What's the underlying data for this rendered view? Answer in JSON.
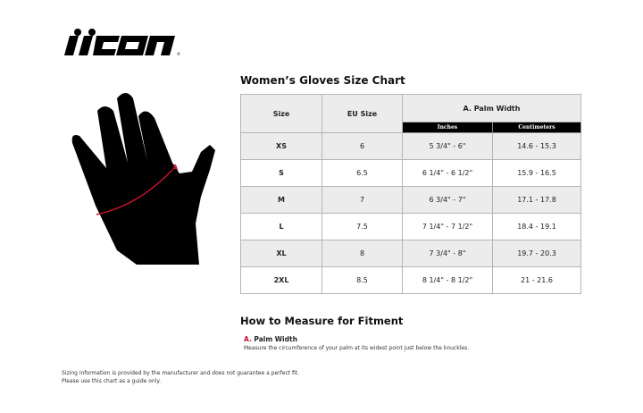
{
  "brand": "icon",
  "title": "Women’s Gloves Size Chart",
  "table": {
    "headers": {
      "size": "Size",
      "eu": "EU Size",
      "palm": "A. Palm Width",
      "inches": "Inches",
      "cm": "Centimeters"
    },
    "rows": [
      {
        "size": "XS",
        "eu": "6",
        "inches": "5 3/4\" - 6\"",
        "cm": "14.6 - 15.3"
      },
      {
        "size": "S",
        "eu": "6.5",
        "inches": "6 1/4\" - 6 1/2\"",
        "cm": "15.9 - 16.5"
      },
      {
        "size": "M",
        "eu": "7",
        "inches": "6 3/4\" - 7\"",
        "cm": "17.1 - 17.8"
      },
      {
        "size": "L",
        "eu": "7.5",
        "inches": "7 1/4\" - 7 1/2\"",
        "cm": "18.4 - 19.1"
      },
      {
        "size": "XL",
        "eu": "8",
        "inches": "7 3/4\" - 8\"",
        "cm": "19.7 - 20.3"
      },
      {
        "size": "2XL",
        "eu": "8.5",
        "inches": "8 1/4\" - 8 1/2\"",
        "cm": "21 - 21.6"
      }
    ]
  },
  "howto": {
    "title": "How to Measure for Fitment",
    "marker": "A.",
    "label": "Palm Width",
    "desc": "Measure the circumference of your palm at its widest point just below the knuckles."
  },
  "glove": {
    "marker": "A"
  },
  "footer": {
    "line1": "Sizing information is provided by the manufacturer and does not guarantee a perfect fit.",
    "line2": "Please use this chart as a guide only."
  },
  "colors": {
    "accent": "#c8102e",
    "row_alt": "#ececec"
  }
}
